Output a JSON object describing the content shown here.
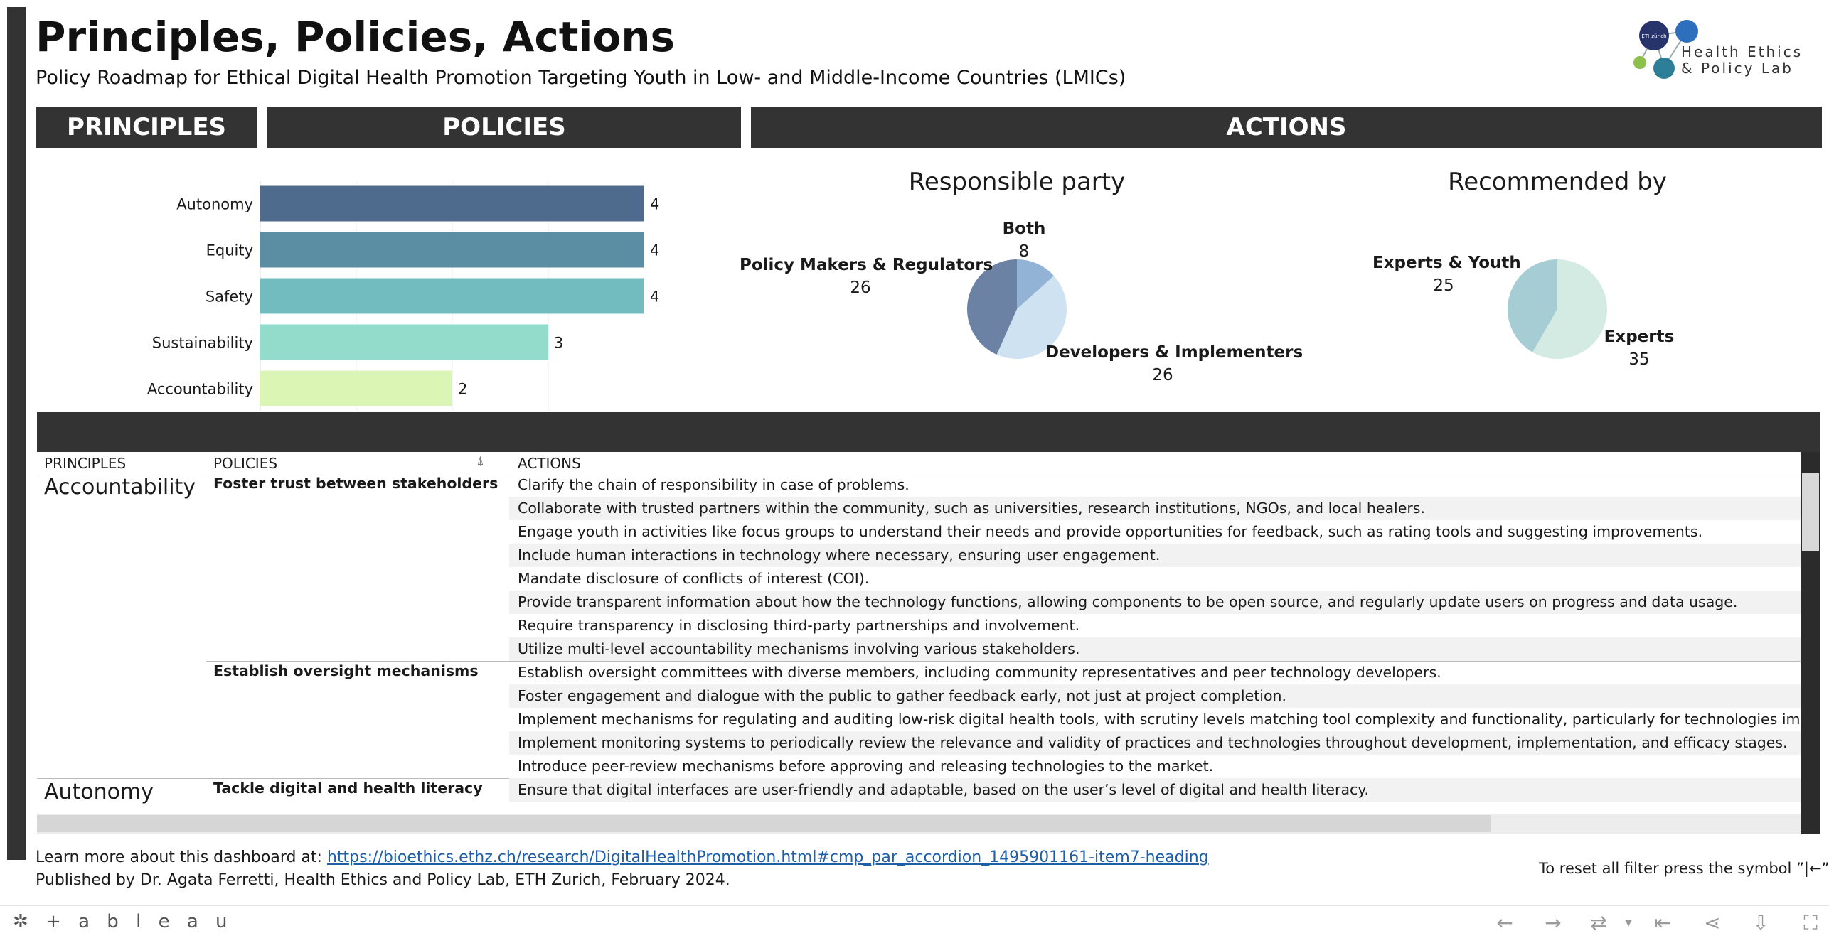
{
  "page": {
    "title": "Principles, Policies, Actions",
    "subtitle": "Policy Roadmap for Ethical Digital Health Promotion Targeting Youth in Low- and Middle-Income Countries (LMICs)",
    "logo": {
      "badge": "ETHzürich",
      "line1": "Health Ethics",
      "line2": "& Policy Lab"
    }
  },
  "headers": {
    "principles": "PRINCIPLES",
    "policies": "POLICIES",
    "actions": "ACTIONS"
  },
  "chart_data": [
    {
      "type": "bar",
      "orientation": "horizontal",
      "categories": [
        "Autonomy",
        "Equity",
        "Safety",
        "Sustainability",
        "Accountability"
      ],
      "values": [
        4,
        4,
        4,
        3,
        2
      ],
      "colors": [
        "#4e6a8d",
        "#5b8ea3",
        "#72bcc0",
        "#93dccb",
        "#dbf5b5"
      ],
      "xlim": [
        0,
        4
      ]
    },
    {
      "type": "pie",
      "title": "Responsible party",
      "slices": [
        {
          "label": "Both",
          "value": 8,
          "color": "#93b3d6"
        },
        {
          "label": "Developers & Implementers",
          "value": 26,
          "color": "#cfe2f1"
        },
        {
          "label": "Policy Makers & Regulators",
          "value": 26,
          "color": "#6b82a4"
        }
      ]
    },
    {
      "type": "pie",
      "title": "Recommended by",
      "slices": [
        {
          "label": "Experts",
          "value": 35,
          "color": "#d3ebe2"
        },
        {
          "label": "Experts & Youth",
          "value": 25,
          "color": "#a6ccd4"
        }
      ]
    }
  ],
  "table": {
    "columns": {
      "principles": "PRINCIPLES",
      "policies": "POLICIES",
      "actions": "ACTIONS"
    },
    "groups": [
      {
        "principle": "Accountability",
        "policies": [
          {
            "name": "Foster trust between stakeholders",
            "actions": [
              "Clarify the chain of responsibility in case of problems.",
              "Collaborate with trusted partners within the community, such as universities, research institutions, NGOs, and local healers.",
              "Engage youth in activities like focus groups to understand their needs and provide opportunities for feedback, such as rating tools and suggesting improvements.",
              "Include human interactions in technology where necessary, ensuring user engagement.",
              "Mandate disclosure of conflicts of interest (COI).",
              "Provide transparent information about how the technology functions, allowing components to be open source, and regularly update users on progress and data usage.",
              "Require transparency in disclosing third-party partnerships and involvement.",
              "Utilize multi-level accountability mechanisms involving various stakeholders."
            ]
          },
          {
            "name": "Establish oversight mechanisms",
            "actions": [
              "Establish oversight committees with diverse members, including community representatives and peer technology developers.",
              "Foster engagement and dialogue with the public to gather feedback early, not just at project completion.",
              "Implement mechanisms for regulating and auditing low-risk digital health tools, with scrutiny levels matching tool complexity and functionality, particularly for technologies impacting",
              "Implement monitoring systems to periodically review the relevance and validity of practices and technologies throughout development, implementation, and efficacy stages.",
              "Introduce peer-review mechanisms before approving and releasing technologies to the market."
            ]
          }
        ]
      },
      {
        "principle": "Autonomy",
        "policies": [
          {
            "name": "Tackle digital and health literacy",
            "actions": [
              "Ensure that digital interfaces are user-friendly and adaptable, based on the user’s level of digital and health literacy."
            ]
          }
        ]
      }
    ]
  },
  "footer": {
    "learn_prefix": "Learn more about this dashboard at: ",
    "learn_link": "https://bioethics.ethz.ch/research/DigitalHealthPromotion.html#cmp_par_accordion_1495901161-item7-heading",
    "published": "Published by Dr. Agata Ferretti, Health Ethics and Policy Lab, ETH Zurich, February 2024.",
    "reset": "To reset all filter press the symbol ”|←”"
  },
  "toolbar": {
    "brand": "+ a b l e a u"
  }
}
